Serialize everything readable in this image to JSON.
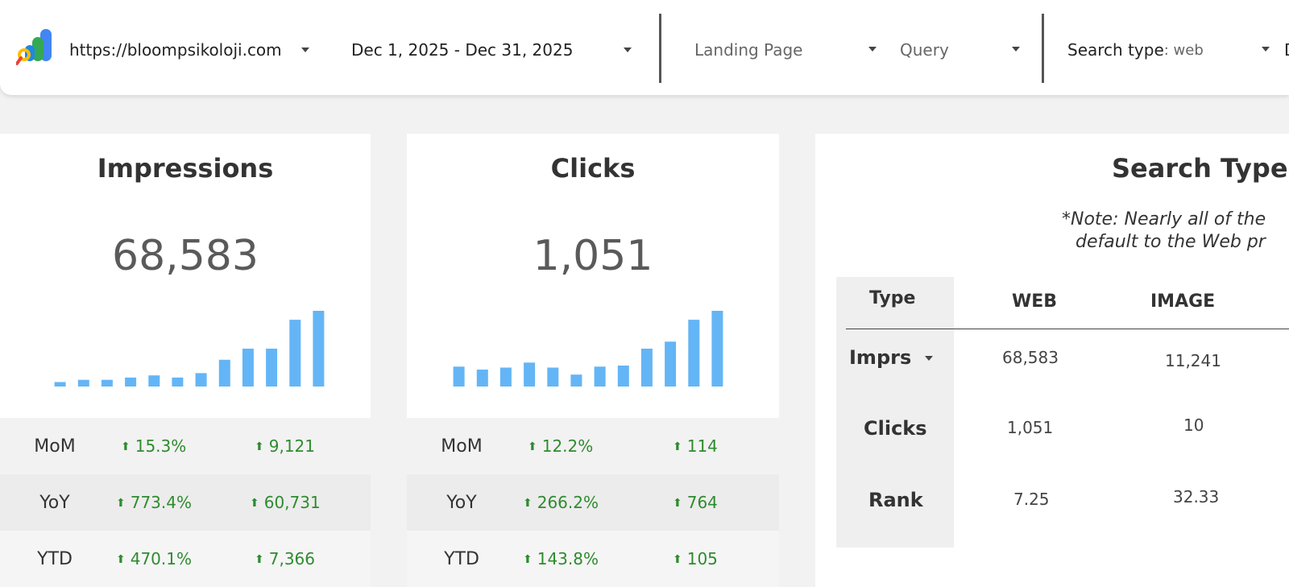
{
  "toolbar": {
    "site_url": "https://bloompsikoloji.com",
    "date_range": "Dec 1, 2025 - Dec 31, 2025",
    "landing_page_label": "Landing Page",
    "query_label": "Query",
    "search_type_label": "Search type",
    "search_type_value": ": web",
    "partial_next": "D"
  },
  "impressions": {
    "title": "Impressions",
    "total": "68,583",
    "trend": [
      2,
      3,
      3,
      4,
      5,
      4,
      6,
      12,
      17,
      17,
      30,
      34
    ],
    "rows": [
      {
        "label": "MoM",
        "pct": "15.3%",
        "abs": "9,121"
      },
      {
        "label": "YoY",
        "pct": "773.4%",
        "abs": "60,731"
      },
      {
        "label": "YTD",
        "pct": "470.1%",
        "abs": "7,366"
      }
    ]
  },
  "clicks": {
    "title": "Clicks",
    "total": "1,051",
    "trend": [
      20,
      17,
      19,
      24,
      19,
      12,
      20,
      21,
      38,
      45,
      67,
      76
    ],
    "rows": [
      {
        "label": "MoM",
        "pct": "12.2%",
        "abs": "114"
      },
      {
        "label": "YoY",
        "pct": "266.2%",
        "abs": "764"
      },
      {
        "label": "YTD",
        "pct": "143.8%",
        "abs": "105"
      }
    ]
  },
  "search_types": {
    "title": "Search Types",
    "note_line1": "*Note: Nearly all of the",
    "note_line2": "default to the Web pr",
    "header_type": "Type",
    "columns": [
      "WEB",
      "IMAGE"
    ],
    "rows": [
      {
        "label": "Imprs",
        "values": [
          "68,583",
          "11,241"
        ]
      },
      {
        "label": "Clicks",
        "values": [
          "1,051",
          "10"
        ]
      },
      {
        "label": "Rank",
        "values": [
          "7.25",
          "32.33"
        ]
      }
    ]
  },
  "colors": {
    "bar": "#64b5f6",
    "positive": "#2e8b2e"
  }
}
